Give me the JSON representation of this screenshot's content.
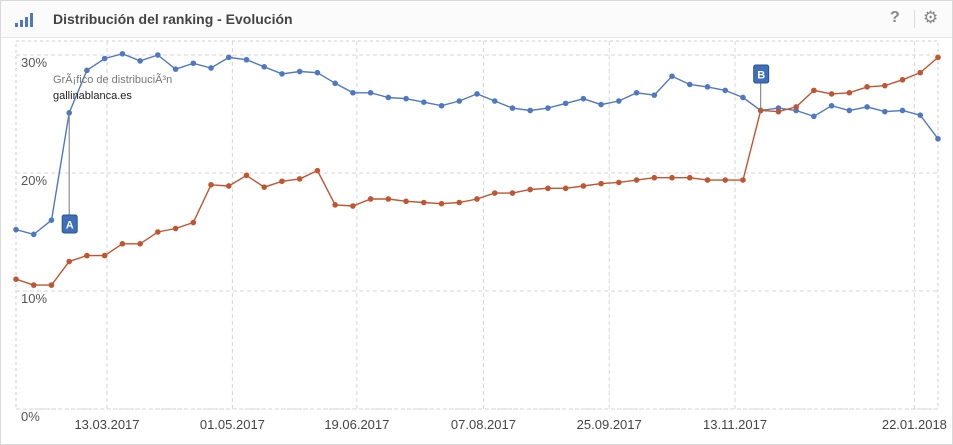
{
  "header": {
    "title": "Distribución del ranking - Evolución",
    "help_icon": "?",
    "gear_icon": "⚙"
  },
  "chart_data": {
    "type": "line",
    "subtitle": "GrÃ¡fico de distribuciÃ³n",
    "domain": "gallinablanca.es",
    "ylim": [
      0,
      30
    ],
    "yticks": [
      "0%",
      "10%",
      "20%",
      "30%"
    ],
    "xticks": [
      "13.03.2017",
      "01.05.2017",
      "19.06.2017",
      "07.08.2017",
      "25.09.2017",
      "13.11.2017",
      "22.01.2018"
    ],
    "grid": true,
    "series": [
      {
        "color": "#4f78c4",
        "values": [
          15.2,
          14.8,
          16.0,
          25.1,
          28.7,
          29.7,
          30.1,
          29.5,
          30.0,
          28.8,
          29.3,
          28.9,
          29.8,
          29.6,
          29.0,
          28.4,
          28.6,
          28.5,
          27.6,
          26.8,
          26.8,
          26.4,
          26.3,
          26.0,
          25.7,
          26.1,
          26.7,
          26.1,
          25.5,
          25.3,
          25.5,
          25.9,
          26.3,
          25.8,
          26.1,
          26.8,
          26.6,
          28.2,
          27.5,
          27.3,
          27.0,
          26.4,
          25.3,
          25.5,
          25.3,
          24.8,
          25.7,
          25.3,
          25.6,
          25.2,
          25.3,
          24.9,
          22.9
        ]
      },
      {
        "color": "#c0552f",
        "values": [
          11.0,
          10.5,
          10.5,
          12.5,
          13.0,
          13.0,
          14.0,
          14.0,
          15.0,
          15.3,
          15.8,
          19.0,
          18.9,
          19.8,
          18.8,
          19.3,
          19.5,
          20.2,
          17.3,
          17.2,
          17.8,
          17.8,
          17.6,
          17.5,
          17.4,
          17.5,
          17.8,
          18.3,
          18.3,
          18.6,
          18.7,
          18.7,
          18.9,
          19.1,
          19.2,
          19.4,
          19.6,
          19.6,
          19.6,
          19.4,
          19.4,
          19.4,
          25.3,
          25.2,
          25.6,
          27.0,
          26.7,
          26.8,
          27.3,
          27.4,
          27.9,
          28.5,
          29.8
        ]
      }
    ],
    "annotations": [
      {
        "label": "A",
        "index": 3
      },
      {
        "label": "B",
        "index": 42
      }
    ]
  }
}
